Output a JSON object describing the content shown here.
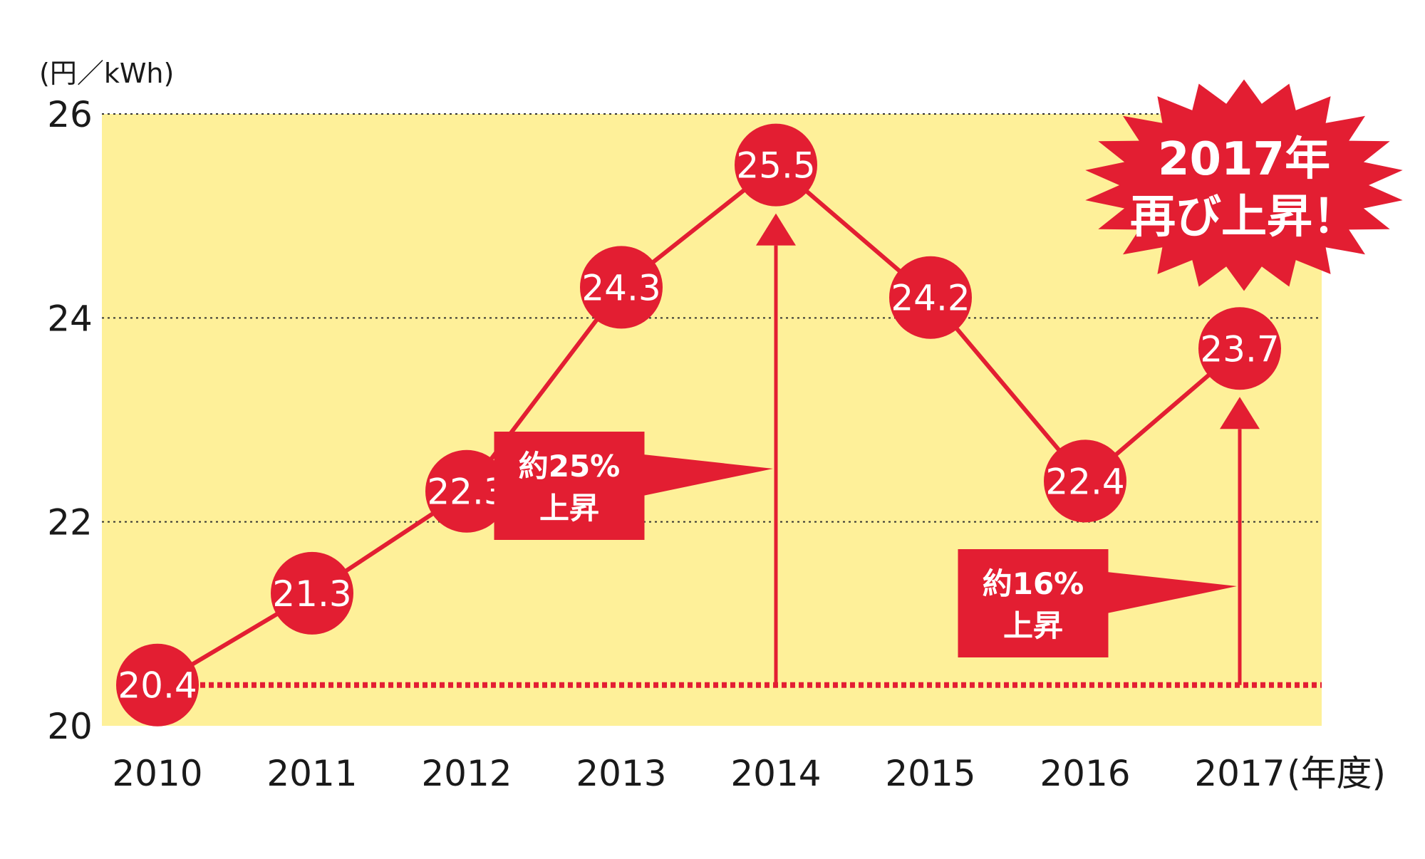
{
  "chart_data": {
    "type": "line",
    "title": "",
    "ylabel": "(円／kWh)",
    "xlabel_suffix": "(年度)",
    "ylim": [
      20,
      26
    ],
    "yticks": [
      "20",
      "22",
      "24",
      "26"
    ],
    "grid": true,
    "categories": [
      "2010",
      "2011",
      "2012",
      "2013",
      "2014",
      "2015",
      "2016",
      "2017"
    ],
    "values": [
      20.4,
      21.3,
      22.3,
      24.3,
      25.5,
      24.2,
      22.4,
      23.7
    ],
    "labels": [
      "20.4",
      "21.3",
      "22.3",
      "24.3",
      "25.5",
      "24.2",
      "22.4",
      "23.7"
    ],
    "baseline_value": 20.4,
    "annotations": [
      {
        "category": "2014",
        "line1": "約25%",
        "line2": "上昇"
      },
      {
        "category": "2017",
        "line1": "約16%",
        "line2": "上昇"
      }
    ],
    "callout": {
      "line1": "2017年",
      "line2": "再び上昇！"
    }
  },
  "colors": {
    "accent": "#e31e32",
    "plot_bg": "#fef099",
    "grid": "#333333",
    "text": "#1a1a1a"
  }
}
